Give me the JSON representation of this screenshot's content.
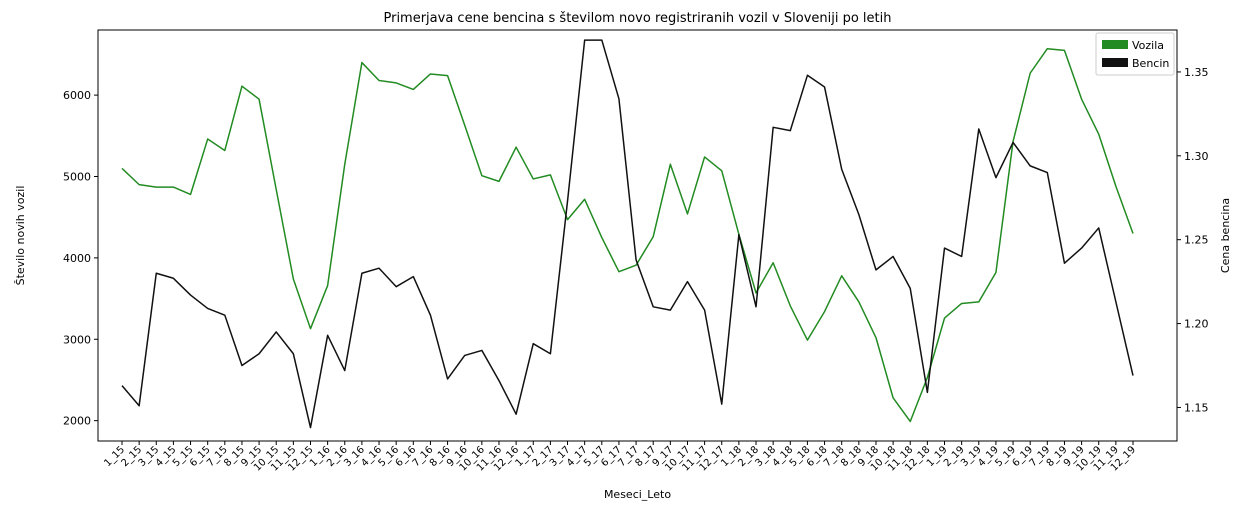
{
  "chart_data": {
    "type": "line",
    "title": "Primerjava cene bencina s številom novo registriranih vozil v Sloveniji po letih",
    "xlabel": "Meseci_Leto",
    "ylabel_left": "Število novih vozil",
    "ylabel_right": "Cena bencina",
    "ylim_left": [
      1750,
      6800
    ],
    "ylim_right": [
      1.13,
      1.375
    ],
    "yticks_left": [
      2000,
      3000,
      4000,
      5000,
      6000
    ],
    "yticks_right": [
      1.15,
      1.2,
      1.25,
      1.3,
      1.35
    ],
    "yticks_right_labels": [
      "1.15",
      "1.20",
      "1.25",
      "1.30",
      "1.35"
    ],
    "legend_position": "top-right",
    "grid": false,
    "x": [
      "1_15",
      "2_15",
      "3_15",
      "4_15",
      "5_15",
      "6_15",
      "7_15",
      "8_15",
      "9_15",
      "10_15",
      "11_15",
      "12_15",
      "1_16",
      "2_16",
      "3_16",
      "4_16",
      "5_16",
      "6_16",
      "7_16",
      "8_16",
      "9_16",
      "10_16",
      "11_16",
      "12_16",
      "1_17",
      "2_17",
      "3_17",
      "4_17",
      "5_17",
      "6_17",
      "7_17",
      "8_17",
      "9_17",
      "10_17",
      "11_17",
      "12_17",
      "1_18",
      "2_18",
      "3_18",
      "4_18",
      "5_18",
      "6_18",
      "7_18",
      "8_18",
      "9_18",
      "10_18",
      "11_18",
      "12_18",
      "1_19",
      "2_19",
      "3_19",
      "4_19",
      "5_19",
      "6_19",
      "7_19",
      "8_19",
      "9_19",
      "10_19",
      "11_19",
      "12_19"
    ],
    "series": [
      {
        "name": "Vozila",
        "axis": "left",
        "color": "#228b22",
        "values": [
          5100,
          4900,
          4870,
          4870,
          4780,
          5460,
          5320,
          6110,
          5950,
          4840,
          3740,
          3130,
          3660,
          5150,
          6400,
          6180,
          6150,
          6070,
          6260,
          6240,
          5630,
          5010,
          4940,
          5360,
          4970,
          5020,
          4470,
          4720,
          4250,
          3830,
          3910,
          4260,
          5150,
          4540,
          5240,
          5070,
          4290,
          3570,
          3940,
          3410,
          2990,
          3340,
          3780,
          3460,
          3020,
          2280,
          1990,
          2530,
          3260,
          3440,
          3460,
          3820,
          5430,
          6270,
          6570,
          6550,
          5950,
          5520,
          4880,
          4300
        ]
      },
      {
        "name": "Bencin",
        "axis": "right",
        "color": "#111111",
        "values": [
          1.163,
          1.151,
          1.23,
          1.227,
          1.217,
          1.209,
          1.205,
          1.175,
          1.182,
          1.195,
          1.182,
          1.138,
          1.193,
          1.172,
          1.23,
          1.233,
          1.222,
          1.228,
          1.205,
          1.167,
          1.181,
          1.184,
          1.166,
          1.146,
          1.188,
          1.182,
          1.273,
          1.369,
          1.369,
          1.334,
          1.238,
          1.21,
          1.208,
          1.225,
          1.208,
          1.152,
          1.253,
          1.21,
          1.317,
          1.315,
          1.348,
          1.341,
          1.292,
          1.265,
          1.232,
          1.24,
          1.221,
          1.159,
          1.245,
          1.24,
          1.316,
          1.287,
          1.308,
          1.294,
          1.29,
          1.236,
          1.245,
          1.257,
          1.213,
          1.169
        ]
      }
    ]
  }
}
